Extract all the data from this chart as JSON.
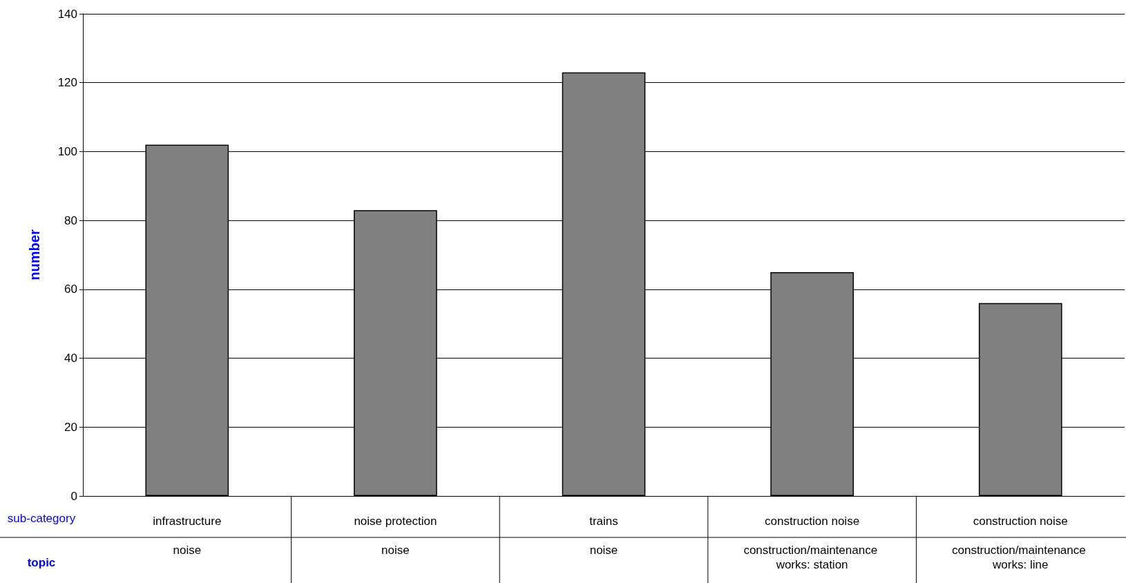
{
  "chart_data": {
    "type": "bar",
    "ylabel": "number",
    "categories": [
      "infrastructure",
      "noise protection",
      "trains",
      "construction noise",
      "construction noise"
    ],
    "values": [
      102,
      83,
      123,
      65,
      56
    ],
    "color": "#808080",
    "ylim": [
      0,
      140
    ],
    "yticks": [
      0,
      20,
      40,
      60,
      80,
      100,
      120,
      140
    ],
    "grid": "y",
    "annotations": [
      "sub-category",
      "topic",
      "noise",
      "noise",
      "noise",
      "construction/maintenance works: station",
      "construction/maintenance works: line"
    ]
  }
}
